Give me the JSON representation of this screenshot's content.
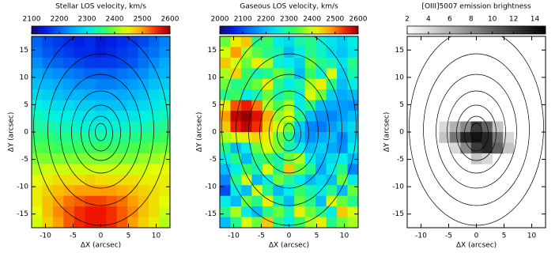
{
  "chart_data": [
    {
      "type": "heatmap",
      "title": "Stellar LOS velocity, km/s",
      "colormap": "rainbow",
      "clim": [
        2100,
        2600
      ],
      "cticks": [
        2100,
        2200,
        2300,
        2400,
        2500,
        2600
      ],
      "xlabel": "ΔX (arcsec)",
      "ylabel": "ΔY (arcsec)",
      "xlim": [
        -12.5,
        12.5
      ],
      "ylim": [
        -17.5,
        17.5
      ],
      "xticks": [
        -10,
        -5,
        0,
        5,
        10
      ],
      "yticks": [
        -15,
        -10,
        -5,
        0,
        5,
        10,
        15
      ],
      "z": [
        [
          2200,
          2180,
          2170,
          2160,
          2150,
          2160,
          2140,
          2150,
          2160,
          2170,
          2180,
          2200,
          2220
        ],
        [
          2210,
          2190,
          2180,
          2170,
          2160,
          2160,
          2150,
          2160,
          2170,
          2180,
          2200,
          2210,
          2230
        ],
        [
          2230,
          2210,
          2200,
          2190,
          2180,
          2170,
          2170,
          2170,
          2180,
          2190,
          2210,
          2230,
          2250
        ],
        [
          2250,
          2240,
          2230,
          2220,
          2210,
          2200,
          2200,
          2200,
          2210,
          2220,
          2230,
          2250,
          2260
        ],
        [
          2270,
          2260,
          2250,
          2240,
          2230,
          2230,
          2220,
          2220,
          2230,
          2240,
          2250,
          2270,
          2280
        ],
        [
          2290,
          2280,
          2270,
          2260,
          2260,
          2250,
          2250,
          2250,
          2250,
          2260,
          2270,
          2290,
          2300
        ],
        [
          2310,
          2300,
          2290,
          2290,
          2280,
          2280,
          2270,
          2270,
          2270,
          2280,
          2290,
          2300,
          2320
        ],
        [
          2330,
          2320,
          2310,
          2310,
          2300,
          2300,
          2290,
          2300,
          2300,
          2300,
          2310,
          2320,
          2330
        ],
        [
          2340,
          2340,
          2330,
          2330,
          2320,
          2320,
          2320,
          2320,
          2320,
          2330,
          2330,
          2340,
          2350
        ],
        [
          2360,
          2360,
          2350,
          2350,
          2350,
          2340,
          2340,
          2340,
          2350,
          2350,
          2360,
          2360,
          2370
        ],
        [
          2380,
          2380,
          2370,
          2370,
          2370,
          2370,
          2370,
          2370,
          2370,
          2380,
          2380,
          2390,
          2390
        ],
        [
          2400,
          2400,
          2400,
          2400,
          2400,
          2400,
          2400,
          2400,
          2400,
          2400,
          2410,
          2410,
          2420
        ],
        [
          2420,
          2430,
          2430,
          2430,
          2430,
          2430,
          2430,
          2430,
          2430,
          2430,
          2430,
          2440,
          2440
        ],
        [
          2440,
          2450,
          2460,
          2460,
          2460,
          2470,
          2460,
          2460,
          2460,
          2460,
          2450,
          2450,
          2450
        ],
        [
          2450,
          2470,
          2480,
          2490,
          2500,
          2500,
          2500,
          2500,
          2490,
          2480,
          2470,
          2460,
          2450
        ],
        [
          2450,
          2480,
          2500,
          2520,
          2530,
          2540,
          2540,
          2530,
          2520,
          2500,
          2480,
          2460,
          2440
        ],
        [
          2440,
          2480,
          2510,
          2530,
          2550,
          2560,
          2560,
          2550,
          2530,
          2510,
          2480,
          2460,
          2430
        ],
        [
          2430,
          2470,
          2500,
          2530,
          2550,
          2560,
          2560,
          2550,
          2530,
          2500,
          2470,
          2450,
          2420
        ]
      ]
    },
    {
      "type": "heatmap",
      "title": "Gaseous LOS velocity, km/s",
      "colormap": "rainbow",
      "clim": [
        2000,
        2600
      ],
      "cticks": [
        2000,
        2100,
        2200,
        2300,
        2400,
        2500,
        2600
      ],
      "xlabel": "ΔX (arcsec)",
      "ylabel": "ΔY (arcsec)",
      "xlim": [
        -12.5,
        12.5
      ],
      "ylim": [
        -17.5,
        17.5
      ],
      "xticks": [
        -10,
        -5,
        0,
        5,
        10
      ],
      "yticks": [
        -15,
        -10,
        -5,
        0,
        5,
        10,
        15
      ],
      "z": [
        [
          2350,
          2420,
          2450,
          2300,
          2320,
          2250,
          2230,
          2280,
          2300,
          2260,
          2240,
          2220,
          2250
        ],
        [
          2400,
          2480,
          2380,
          2340,
          2300,
          2280,
          2200,
          2250,
          2300,
          2270,
          2230,
          2210,
          2240
        ],
        [
          2450,
          2400,
          2350,
          2420,
          2380,
          2260,
          2250,
          2220,
          2350,
          2300,
          2280,
          2240,
          2300
        ],
        [
          2380,
          2440,
          2320,
          2280,
          2300,
          2350,
          2300,
          2200,
          2320,
          2260,
          2400,
          2220,
          2280
        ],
        [
          2350,
          2300,
          2320,
          2350,
          2420,
          2300,
          2250,
          2280,
          2380,
          2420,
          2300,
          2200,
          2250
        ],
        [
          2300,
          2320,
          2250,
          2280,
          2350,
          2280,
          2320,
          2250,
          2400,
          2350,
          2220,
          2180,
          2200
        ],
        [
          2420,
          2520,
          2550,
          2500,
          2380,
          2330,
          2380,
          2250,
          2300,
          2200,
          2180,
          2170,
          2160
        ],
        [
          2480,
          2580,
          2600,
          2560,
          2470,
          2370,
          2400,
          2300,
          2200,
          2160,
          2150,
          2170,
          2200
        ],
        [
          2450,
          2550,
          2580,
          2540,
          2450,
          2400,
          2350,
          2220,
          2150,
          2140,
          2170,
          2200,
          2230
        ],
        [
          2380,
          2400,
          2420,
          2440,
          2420,
          2350,
          2300,
          2200,
          2160,
          2180,
          2200,
          2150,
          2220
        ],
        [
          2300,
          2200,
          2250,
          2350,
          2400,
          2360,
          2280,
          2250,
          2200,
          2220,
          2180,
          2160,
          2250
        ],
        [
          2250,
          2300,
          2200,
          2300,
          2320,
          2280,
          2350,
          2380,
          2250,
          2200,
          2230,
          2250,
          2200
        ],
        [
          2200,
          2250,
          2320,
          2280,
          2400,
          2300,
          2450,
          2350,
          2300,
          2180,
          2250,
          2300,
          2150
        ],
        [
          2150,
          2300,
          2400,
          2200,
          2250,
          2350,
          2300,
          2250,
          2200,
          2230,
          2200,
          2350,
          2250
        ],
        [
          2100,
          2250,
          2200,
          2400,
          2300,
          2200,
          2250,
          2320,
          2280,
          2250,
          2300,
          2200,
          2350
        ],
        [
          2250,
          2200,
          2350,
          2300,
          2420,
          2280,
          2200,
          2350,
          2300,
          2200,
          2400,
          2350,
          2300
        ],
        [
          2300,
          2380,
          2250,
          2200,
          2300,
          2350,
          2280,
          2420,
          2350,
          2300,
          2250,
          2450,
          2400
        ],
        [
          2200,
          2300,
          2400,
          2350,
          2450,
          2300,
          2250,
          2320,
          2380,
          2420,
          2300,
          2350,
          2380
        ]
      ]
    },
    {
      "type": "heatmap",
      "title": "[OIII]5007 emission brightness",
      "colormap": "gray_r",
      "clim": [
        2,
        15
      ],
      "cticks": [
        2,
        4,
        6,
        8,
        10,
        12,
        14
      ],
      "xlabel": "ΔX (arcsec)",
      "ylabel": "ΔY (arcsec)",
      "xlim": [
        -12.5,
        12.5
      ],
      "ylim": [
        -17.5,
        17.5
      ],
      "xticks": [
        -10,
        -5,
        0,
        5,
        10
      ],
      "yticks": [
        -15,
        -10,
        -5,
        0,
        5,
        10,
        15
      ],
      "z": [
        [
          null,
          null,
          null,
          null,
          null,
          null,
          null,
          null,
          null,
          null,
          null,
          null,
          null
        ],
        [
          null,
          null,
          null,
          null,
          null,
          null,
          null,
          null,
          null,
          null,
          null,
          null,
          null
        ],
        [
          null,
          null,
          null,
          null,
          null,
          null,
          null,
          null,
          null,
          null,
          null,
          null,
          null
        ],
        [
          null,
          null,
          null,
          null,
          null,
          null,
          null,
          null,
          null,
          null,
          null,
          null,
          null
        ],
        [
          null,
          null,
          null,
          null,
          null,
          null,
          null,
          null,
          null,
          null,
          null,
          null,
          null
        ],
        [
          null,
          null,
          null,
          null,
          null,
          null,
          null,
          null,
          null,
          null,
          null,
          null,
          null
        ],
        [
          null,
          null,
          null,
          null,
          null,
          null,
          null,
          null,
          null,
          null,
          null,
          null,
          null
        ],
        [
          null,
          null,
          null,
          null,
          null,
          null,
          null,
          null,
          null,
          null,
          null,
          null,
          null
        ],
        [
          null,
          null,
          null,
          4,
          6,
          8,
          12,
          10,
          5,
          null,
          null,
          null,
          null
        ],
        [
          null,
          null,
          null,
          5,
          9,
          13,
          14,
          13,
          9,
          4,
          null,
          null,
          null
        ],
        [
          null,
          null,
          null,
          null,
          4,
          8,
          12,
          13,
          10,
          5,
          null,
          null,
          null
        ],
        [
          null,
          null,
          null,
          null,
          null,
          null,
          5,
          4,
          null,
          null,
          null,
          null,
          null
        ],
        [
          null,
          null,
          null,
          null,
          null,
          null,
          null,
          null,
          null,
          null,
          null,
          null,
          null
        ],
        [
          null,
          null,
          null,
          null,
          null,
          null,
          null,
          null,
          null,
          null,
          null,
          null,
          null
        ],
        [
          null,
          null,
          null,
          null,
          null,
          null,
          null,
          null,
          null,
          null,
          null,
          null,
          null
        ],
        [
          null,
          null,
          null,
          null,
          null,
          null,
          null,
          null,
          null,
          null,
          null,
          null,
          null
        ],
        [
          null,
          null,
          null,
          null,
          null,
          null,
          null,
          null,
          null,
          null,
          null,
          null,
          null
        ],
        [
          null,
          null,
          null,
          null,
          null,
          null,
          null,
          null,
          null,
          null,
          null,
          null,
          null
        ]
      ]
    }
  ]
}
